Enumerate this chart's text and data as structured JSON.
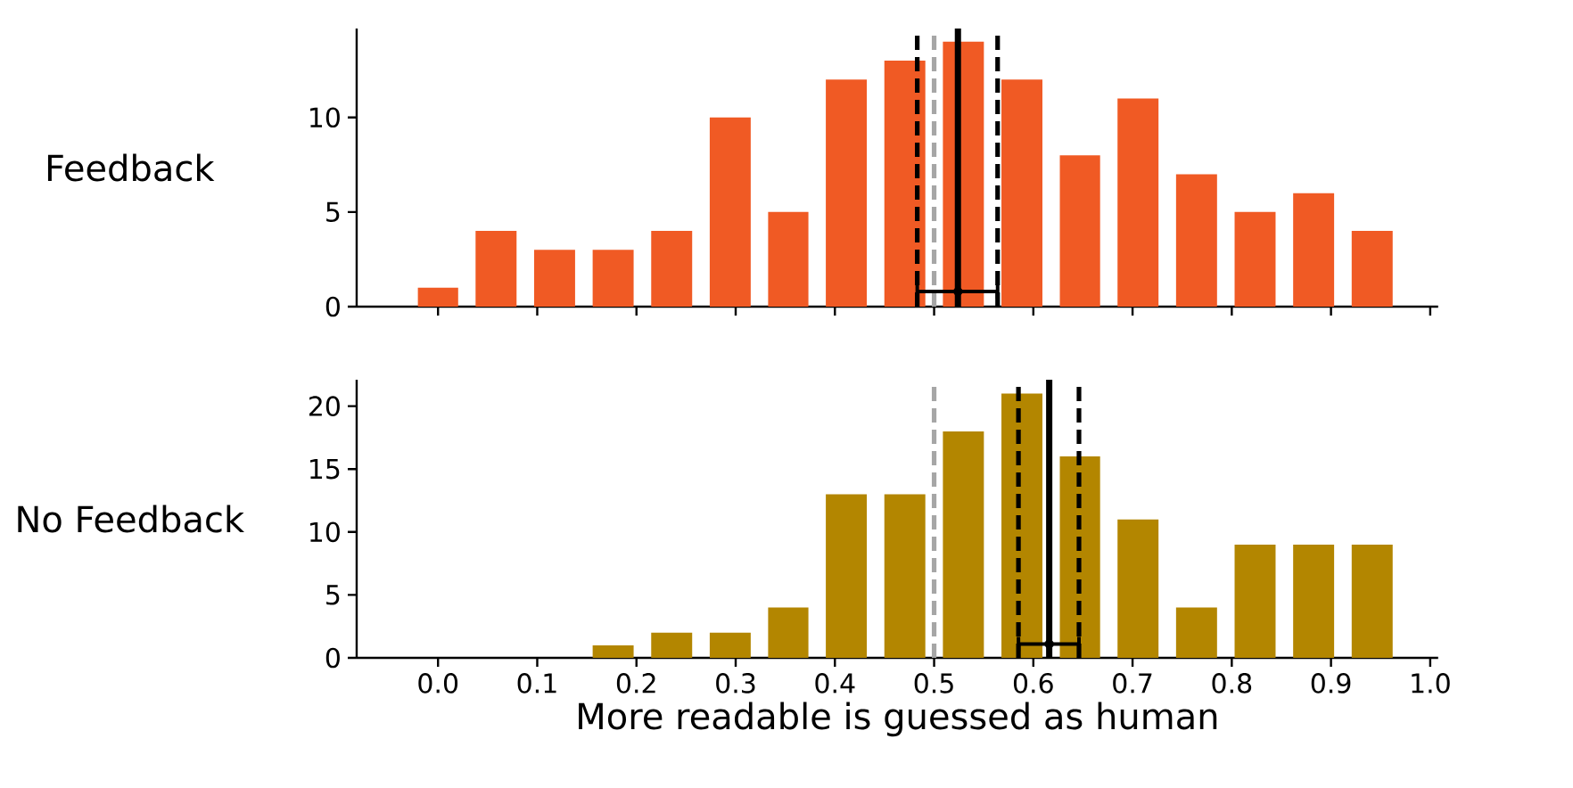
{
  "chart_data": [
    {
      "type": "histogram",
      "ylabel": "Feedback",
      "tick_labels": "y",
      "series": [
        {
          "color": "#f05a24",
          "bins": [
            -0.029,
            0.029,
            0.088,
            0.147,
            0.206,
            0.265,
            0.324,
            0.382,
            0.441,
            0.5,
            0.559,
            0.618,
            0.676,
            0.735,
            0.794,
            0.853,
            0.912,
            0.971
          ],
          "values": [
            1,
            4,
            3,
            3,
            4,
            10,
            5,
            12,
            13,
            14,
            12,
            8,
            11,
            7,
            5,
            6,
            4
          ]
        },
        {
          "type": "scatter",
          "color": "#000000",
          "x": [
            0.524
          ],
          "values": [
            0.8
          ],
          "xerrors": [
            [
              0.483,
              0.564
            ]
          ]
        }
      ],
      "xlim": [
        -0.082,
        1.008
      ],
      "ylim": [
        0,
        14.7
      ],
      "xticks": [
        {
          "value": 0,
          "label": null
        },
        {
          "value": 0.1,
          "label": null
        },
        {
          "value": 0.2,
          "label": null
        },
        {
          "value": 0.3,
          "label": null
        },
        {
          "value": 0.4,
          "label": null
        },
        {
          "value": 0.5,
          "label": null
        },
        {
          "value": 0.6,
          "label": null
        },
        {
          "value": 0.7,
          "label": null
        },
        {
          "value": 0.8,
          "label": null
        },
        {
          "value": 0.9,
          "label": null
        },
        {
          "value": 1,
          "label": null
        }
      ],
      "yticks": [
        0,
        5,
        10
      ],
      "ref_lines": [
        {
          "axis": "x",
          "value": 0.5,
          "color": "#a6a6a6",
          "line_style": "dashed"
        },
        {
          "axis": "x",
          "value": 0.483,
          "color": "#000000",
          "line_style": "dashed"
        },
        {
          "axis": "x",
          "value": 0.564,
          "color": "#000000",
          "line_style": "dashed"
        },
        {
          "axis": "x",
          "value": 0.524,
          "color": "#000000",
          "line_style": "solid"
        }
      ]
    },
    {
      "type": "histogram",
      "ylabel": "No Feedback",
      "xlabel": "More readable is guessed as human",
      "series": [
        {
          "color": "#b38600",
          "bins": [
            0.147,
            0.206,
            0.265,
            0.324,
            0.382,
            0.441,
            0.5,
            0.559,
            0.618,
            0.676,
            0.735,
            0.794,
            0.853,
            0.912,
            0.971
          ],
          "values": [
            1,
            2,
            2,
            4,
            13,
            13,
            18,
            21,
            16,
            11,
            4,
            9,
            9,
            9
          ]
        },
        {
          "type": "scatter",
          "color": "#000000",
          "x": [
            0.616
          ],
          "values": [
            1.1
          ],
          "xerrors": [
            [
              0.585,
              0.646
            ]
          ]
        }
      ],
      "xlim": [
        -0.082,
        1.008
      ],
      "ylim": [
        0,
        22.1
      ],
      "xticks": [
        {
          "value": 0,
          "label": "0.0"
        },
        {
          "value": 0.1,
          "label": "0.1"
        },
        {
          "value": 0.2,
          "label": "0.2"
        },
        {
          "value": 0.3,
          "label": "0.3"
        },
        {
          "value": 0.4,
          "label": "0.4"
        },
        {
          "value": 0.5,
          "label": "0.5"
        },
        {
          "value": 0.6,
          "label": "0.6"
        },
        {
          "value": 0.7,
          "label": "0.7"
        },
        {
          "value": 0.8,
          "label": "0.8"
        },
        {
          "value": 0.9,
          "label": "0.9"
        },
        {
          "value": 1,
          "label": "1.0"
        }
      ],
      "yticks": [
        0,
        5,
        10,
        15,
        20
      ],
      "ref_lines": [
        {
          "axis": "x",
          "value": 0.5,
          "color": "#a6a6a6",
          "line_style": "dashed"
        },
        {
          "axis": "x",
          "value": 0.585,
          "color": "#000000",
          "line_style": "dashed"
        },
        {
          "axis": "x",
          "value": 0.646,
          "color": "#000000",
          "line_style": "dashed"
        },
        {
          "axis": "x",
          "value": 0.616,
          "color": "#000000",
          "line_style": "solid"
        }
      ]
    }
  ]
}
